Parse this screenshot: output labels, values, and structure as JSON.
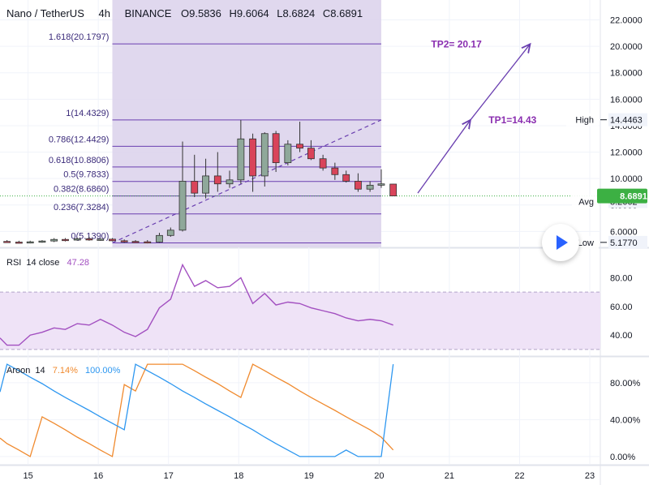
{
  "header": {
    "pair": "Nano / TetherUS",
    "timeframe": "4h",
    "exchange": "BINANCE",
    "open": "O9.5836",
    "high": "H9.6064",
    "low": "L8.6824",
    "close": "C8.6891"
  },
  "colors": {
    "up": "#8fa89a",
    "down": "#d9445a",
    "fib": "#6a3fb0",
    "zone": "#ddd4ec",
    "rsi": "#a24fc0",
    "aroon_up": "#f08a2e",
    "aroon_down": "#2d97f0",
    "price_badge": "#3cb043"
  },
  "chart_data": [
    {
      "type": "candlestick",
      "title": "",
      "y_ticks": [
        6,
        8,
        10,
        12,
        14,
        16,
        18,
        20,
        22
      ],
      "y_tick_labels": [
        "6.0000",
        "8.0000",
        "10.0000",
        "12.0000",
        "14.0000",
        "16.0000",
        "18.0000",
        "20.0000",
        "22.0000"
      ],
      "ylim": [
        4.8,
        23.5
      ],
      "x_ticks": [
        15,
        16,
        17,
        18,
        19,
        20,
        21,
        22,
        23
      ],
      "x_tick_labels": [
        "15",
        "16",
        "17",
        "18",
        "19",
        "20",
        "21",
        "22",
        "23"
      ],
      "candles": [
        {
          "x": 14.7,
          "o": 5.25,
          "h": 5.35,
          "l": 5.15,
          "c": 5.2
        },
        {
          "x": 14.87,
          "o": 5.2,
          "h": 5.3,
          "l": 5.1,
          "c": 5.15
        },
        {
          "x": 15.03,
          "o": 5.15,
          "h": 5.3,
          "l": 5.1,
          "c": 5.22
        },
        {
          "x": 15.2,
          "o": 5.22,
          "h": 5.35,
          "l": 5.15,
          "c": 5.28
        },
        {
          "x": 15.37,
          "o": 5.28,
          "h": 5.5,
          "l": 5.2,
          "c": 5.4
        },
        {
          "x": 15.53,
          "o": 5.4,
          "h": 5.5,
          "l": 5.25,
          "c": 5.35
        },
        {
          "x": 15.7,
          "o": 5.35,
          "h": 5.55,
          "l": 5.3,
          "c": 5.45
        },
        {
          "x": 15.87,
          "o": 5.45,
          "h": 5.6,
          "l": 5.3,
          "c": 5.4
        },
        {
          "x": 16.03,
          "o": 5.4,
          "h": 5.5,
          "l": 5.3,
          "c": 5.42
        },
        {
          "x": 16.2,
          "o": 5.42,
          "h": 5.5,
          "l": 5.25,
          "c": 5.3
        },
        {
          "x": 16.37,
          "o": 5.3,
          "h": 5.4,
          "l": 5.15,
          "c": 5.25
        },
        {
          "x": 16.53,
          "o": 5.25,
          "h": 5.35,
          "l": 5.15,
          "c": 5.22
        },
        {
          "x": 16.7,
          "o": 5.22,
          "h": 5.35,
          "l": 5.1,
          "c": 5.2
        },
        {
          "x": 16.87,
          "o": 5.2,
          "h": 5.9,
          "l": 5.15,
          "c": 5.7
        },
        {
          "x": 17.03,
          "o": 5.7,
          "h": 6.3,
          "l": 5.6,
          "c": 6.1
        },
        {
          "x": 17.2,
          "o": 6.1,
          "h": 12.8,
          "l": 6.0,
          "c": 9.8
        },
        {
          "x": 17.37,
          "o": 9.8,
          "h": 11.8,
          "l": 8.6,
          "c": 8.9
        },
        {
          "x": 17.53,
          "o": 8.9,
          "h": 11.5,
          "l": 8.5,
          "c": 10.2
        },
        {
          "x": 17.7,
          "o": 10.2,
          "h": 12.0,
          "l": 9.0,
          "c": 9.6
        },
        {
          "x": 17.87,
          "o": 9.6,
          "h": 10.6,
          "l": 9.3,
          "c": 9.9
        },
        {
          "x": 18.03,
          "o": 9.9,
          "h": 14.43,
          "l": 9.6,
          "c": 13.0
        },
        {
          "x": 18.2,
          "o": 13.0,
          "h": 13.4,
          "l": 9.0,
          "c": 10.2
        },
        {
          "x": 18.37,
          "o": 10.2,
          "h": 13.5,
          "l": 9.4,
          "c": 13.4
        },
        {
          "x": 18.53,
          "o": 13.4,
          "h": 13.6,
          "l": 10.5,
          "c": 11.2
        },
        {
          "x": 18.7,
          "o": 11.2,
          "h": 12.9,
          "l": 11.0,
          "c": 12.6
        },
        {
          "x": 18.87,
          "o": 12.6,
          "h": 14.3,
          "l": 12.0,
          "c": 12.3
        },
        {
          "x": 19.03,
          "o": 12.3,
          "h": 12.9,
          "l": 11.4,
          "c": 11.5
        },
        {
          "x": 19.2,
          "o": 11.5,
          "h": 11.8,
          "l": 10.6,
          "c": 10.8
        },
        {
          "x": 19.37,
          "o": 10.8,
          "h": 11.2,
          "l": 9.9,
          "c": 10.3
        },
        {
          "x": 19.53,
          "o": 10.3,
          "h": 10.6,
          "l": 9.7,
          "c": 9.8
        },
        {
          "x": 19.7,
          "o": 9.8,
          "h": 10.4,
          "l": 9.0,
          "c": 9.2
        },
        {
          "x": 19.87,
          "o": 9.2,
          "h": 9.8,
          "l": 9.0,
          "c": 9.5
        },
        {
          "x": 20.03,
          "o": 9.5,
          "h": 10.7,
          "l": 9.3,
          "c": 9.6
        },
        {
          "x": 20.2,
          "o": 9.5836,
          "h": 9.6064,
          "l": 8.6824,
          "c": 8.6891
        }
      ],
      "fib_levels": [
        {
          "ratio": "1.618",
          "value": 20.1797,
          "label": "1.618(20.1797)"
        },
        {
          "ratio": "1",
          "value": 14.4329,
          "label": "1(14.4329)"
        },
        {
          "ratio": "0.786",
          "value": 12.4429,
          "label": "0.786(12.4429)"
        },
        {
          "ratio": "0.618",
          "value": 10.8806,
          "label": "0.618(10.8806)"
        },
        {
          "ratio": "0.5",
          "value": 9.7833,
          "label": "0.5(9.7833)"
        },
        {
          "ratio": "0.382",
          "value": 8.686,
          "label": "0.382(8.6860)"
        },
        {
          "ratio": "0.236",
          "value": 7.3284,
          "label": "0.236(7.3284)"
        },
        {
          "ratio": "0",
          "value": 5.139,
          "label": "0(5.1390)"
        }
      ],
      "fib_range_x": [
        16.2,
        20.03
      ],
      "annotations": [
        {
          "text": "TP2= 20.17",
          "x": 21.1,
          "y": 20.17
        },
        {
          "text": "TP1=14.43",
          "x": 21.9,
          "y": 14.43
        }
      ],
      "arrows": [
        {
          "from_x": 20.55,
          "from_y": 8.9,
          "to_x": 21.3,
          "to_y": 14.43
        },
        {
          "from_x": 21.3,
          "from_y": 14.43,
          "to_x": 22.15,
          "to_y": 20.17
        }
      ],
      "current_price": {
        "value": 8.6891,
        "label": "8.6891"
      },
      "markers": [
        {
          "name": "High",
          "value": 14.4463,
          "label": "14.4463"
        },
        {
          "name": "Avg",
          "value": 8.2662,
          "label": "8.2662"
        },
        {
          "name": "Low",
          "value": 5.177,
          "label": "5.1770"
        }
      ]
    },
    {
      "type": "line",
      "title": "RSI",
      "params": "14 close",
      "value_label": "47.28",
      "ylim": [
        26,
        100
      ],
      "y_ticks": [
        40,
        60,
        80
      ],
      "y_tick_labels": [
        "40.00",
        "60.00",
        "80.00"
      ],
      "band": [
        30,
        70
      ],
      "series": [
        {
          "x": [
            14.6,
            14.7,
            14.87,
            15.03,
            15.2,
            15.37,
            15.53,
            15.7,
            15.87,
            16.03,
            16.2,
            16.37,
            16.53,
            16.7,
            16.87,
            17.03,
            17.2,
            17.37,
            17.53,
            17.7,
            17.87,
            18.03,
            18.2,
            18.37,
            18.53,
            18.7,
            18.87,
            19.03,
            19.2,
            19.37,
            19.53,
            19.7,
            19.87,
            20.03,
            20.2
          ],
          "y": [
            38,
            33,
            33,
            40,
            42,
            45,
            44,
            48,
            47,
            51,
            47,
            42,
            39,
            44,
            59,
            65,
            89,
            74,
            78,
            73,
            74,
            80,
            62,
            69,
            61,
            63,
            62,
            59,
            57,
            55,
            52,
            50,
            51,
            50,
            47
          ]
        }
      ]
    },
    {
      "type": "line",
      "title": "Aroon",
      "params": "14",
      "ylim": [
        -8,
        108
      ],
      "y_ticks": [
        0,
        40,
        80
      ],
      "y_tick_labels": [
        "0.00%",
        "40.00%",
        "80.00%"
      ],
      "series": [
        {
          "name": "Aroon Up",
          "value_label": "7.14%",
          "x": [
            14.6,
            14.7,
            14.87,
            15.03,
            15.2,
            15.37,
            15.53,
            15.7,
            15.87,
            16.03,
            16.2,
            16.37,
            16.53,
            16.7,
            16.87,
            17.03,
            17.2,
            17.37,
            17.53,
            17.7,
            17.87,
            18.03,
            18.2,
            18.37,
            18.53,
            18.7,
            18.87,
            19.03,
            19.2,
            19.37,
            19.53,
            19.7,
            19.87,
            20.03,
            20.2
          ],
          "y": [
            20,
            14,
            7,
            0,
            43,
            36,
            29,
            21,
            14,
            7,
            0,
            78,
            71,
            100,
            100,
            100,
            100,
            93,
            86,
            79,
            71,
            64,
            100,
            93,
            86,
            79,
            71,
            64,
            57,
            50,
            43,
            36,
            29,
            21,
            7.14
          ]
        },
        {
          "name": "Aroon Down",
          "value_label": "100.00%",
          "x": [
            14.6,
            14.7,
            14.87,
            15.03,
            15.2,
            15.37,
            15.53,
            15.7,
            15.87,
            16.03,
            16.2,
            16.37,
            16.53,
            16.7,
            16.87,
            17.03,
            17.2,
            17.37,
            17.53,
            17.7,
            17.87,
            18.03,
            18.2,
            18.37,
            18.53,
            18.7,
            18.87,
            19.03,
            19.2,
            19.37,
            19.53,
            19.7,
            19.87,
            20.03,
            20.2
          ],
          "y": [
            70,
            100,
            93,
            86,
            79,
            71,
            64,
            57,
            50,
            43,
            36,
            29,
            100,
            93,
            86,
            79,
            71,
            64,
            57,
            50,
            43,
            36,
            29,
            21,
            14,
            7,
            0,
            0,
            0,
            0,
            7,
            0,
            0,
            0,
            100
          ]
        }
      ]
    }
  ]
}
